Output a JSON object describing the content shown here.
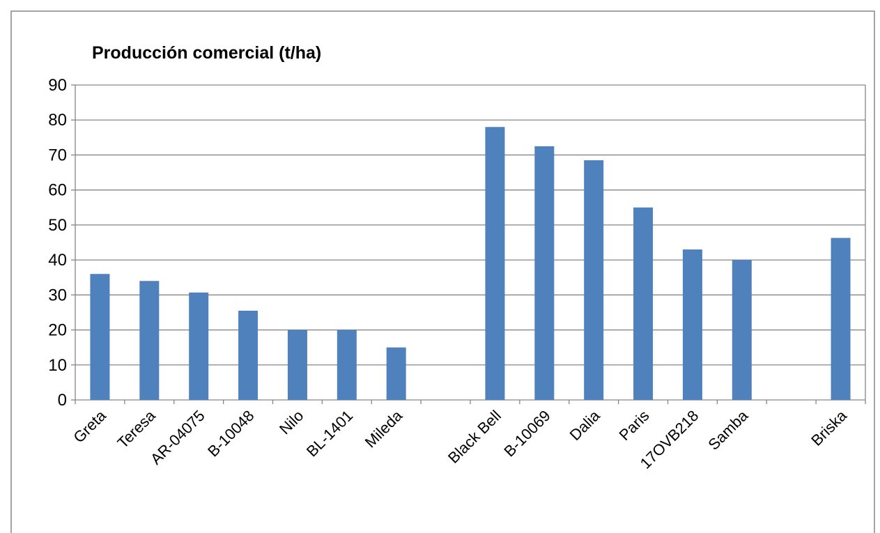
{
  "chart_data": {
    "type": "bar",
    "title": "Producción comercial (t/ha)",
    "categories": [
      "Greta",
      "Teresa",
      "AR-04075",
      "B-10048",
      "Nilo",
      "BL-1401",
      "Mileda",
      null,
      "Black Bell",
      "B-10069",
      "Dalia",
      "Paris",
      "17OVB218",
      "Samba",
      null,
      "Briska"
    ],
    "values": [
      36,
      34,
      30.7,
      25.5,
      20,
      20,
      15,
      null,
      78,
      72.5,
      68.5,
      55,
      43,
      40,
      null,
      46.3
    ],
    "color": "#4f81bd",
    "ylim": [
      0,
      90
    ],
    "yticks": [
      0,
      10,
      20,
      30,
      40,
      50,
      60,
      70,
      80,
      90
    ],
    "grid": true
  }
}
